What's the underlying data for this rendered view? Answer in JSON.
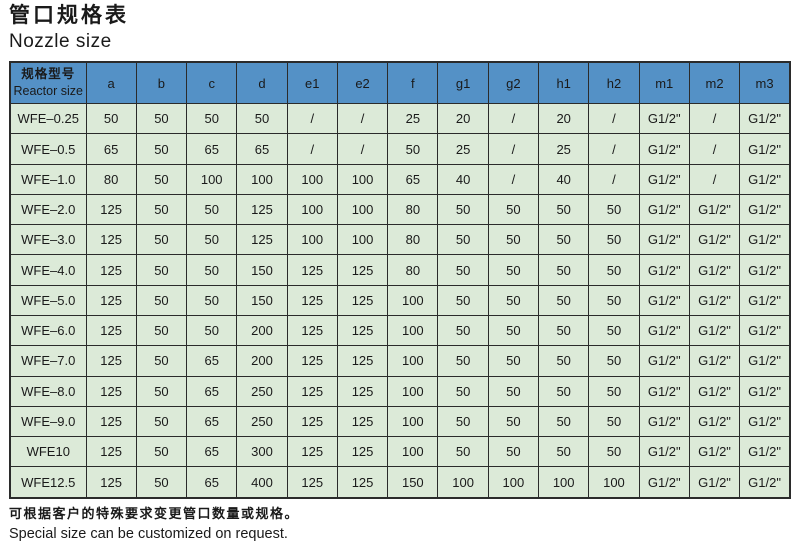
{
  "title": {
    "zh": "管口规格表",
    "en": "Nozzle size"
  },
  "table": {
    "header": {
      "first_zh": "规格型号",
      "first_en": "Reactor size",
      "columns": [
        "a",
        "b",
        "c",
        "d",
        "e1",
        "e2",
        "f",
        "g1",
        "g2",
        "h1",
        "h2",
        "m1",
        "m2",
        "m3"
      ]
    },
    "rows": [
      {
        "model": "WFE–0.25",
        "values": [
          "50",
          "50",
          "50",
          "50",
          "/",
          "/",
          "25",
          "20",
          "/",
          "20",
          "/",
          "G1/2\"",
          "/",
          "G1/2\""
        ]
      },
      {
        "model": "WFE–0.5",
        "values": [
          "65",
          "50",
          "65",
          "65",
          "/",
          "/",
          "50",
          "25",
          "/",
          "25",
          "/",
          "G1/2\"",
          "/",
          "G1/2\""
        ]
      },
      {
        "model": "WFE–1.0",
        "values": [
          "80",
          "50",
          "100",
          "100",
          "100",
          "100",
          "65",
          "40",
          "/",
          "40",
          "/",
          "G1/2\"",
          "/",
          "G1/2\""
        ]
      },
      {
        "model": "WFE–2.0",
        "values": [
          "125",
          "50",
          "50",
          "125",
          "100",
          "100",
          "80",
          "50",
          "50",
          "50",
          "50",
          "G1/2\"",
          "G1/2\"",
          "G1/2\""
        ]
      },
      {
        "model": "WFE–3.0",
        "values": [
          "125",
          "50",
          "50",
          "125",
          "100",
          "100",
          "80",
          "50",
          "50",
          "50",
          "50",
          "G1/2\"",
          "G1/2\"",
          "G1/2\""
        ]
      },
      {
        "model": "WFE–4.0",
        "values": [
          "125",
          "50",
          "50",
          "150",
          "125",
          "125",
          "80",
          "50",
          "50",
          "50",
          "50",
          "G1/2\"",
          "G1/2\"",
          "G1/2\""
        ]
      },
      {
        "model": "WFE–5.0",
        "values": [
          "125",
          "50",
          "50",
          "150",
          "125",
          "125",
          "100",
          "50",
          "50",
          "50",
          "50",
          "G1/2\"",
          "G1/2\"",
          "G1/2\""
        ]
      },
      {
        "model": "WFE–6.0",
        "values": [
          "125",
          "50",
          "50",
          "200",
          "125",
          "125",
          "100",
          "50",
          "50",
          "50",
          "50",
          "G1/2\"",
          "G1/2\"",
          "G1/2\""
        ]
      },
      {
        "model": "WFE–7.0",
        "values": [
          "125",
          "50",
          "65",
          "200",
          "125",
          "125",
          "100",
          "50",
          "50",
          "50",
          "50",
          "G1/2\"",
          "G1/2\"",
          "G1/2\""
        ]
      },
      {
        "model": "WFE–8.0",
        "values": [
          "125",
          "50",
          "65",
          "250",
          "125",
          "125",
          "100",
          "50",
          "50",
          "50",
          "50",
          "G1/2\"",
          "G1/2\"",
          "G1/2\""
        ]
      },
      {
        "model": "WFE–9.0",
        "values": [
          "125",
          "50",
          "65",
          "250",
          "125",
          "125",
          "100",
          "50",
          "50",
          "50",
          "50",
          "G1/2\"",
          "G1/2\"",
          "G1/2\""
        ]
      },
      {
        "model": "WFE10",
        "values": [
          "125",
          "50",
          "65",
          "300",
          "125",
          "125",
          "100",
          "50",
          "50",
          "50",
          "50",
          "G1/2\"",
          "G1/2\"",
          "G1/2\""
        ]
      },
      {
        "model": "WFE12.5",
        "values": [
          "125",
          "50",
          "65",
          "400",
          "125",
          "125",
          "150",
          "100",
          "100",
          "100",
          "100",
          "G1/2\"",
          "G1/2\"",
          "G1/2\""
        ]
      }
    ]
  },
  "footer": {
    "zh": "可根据客户的特殊要求变更管口数量或规格。",
    "en": "Special size can be customized on request."
  },
  "colors": {
    "header_bg": "#5491c6",
    "row_bg": "#dcead8",
    "border": "#2b2b2b"
  }
}
